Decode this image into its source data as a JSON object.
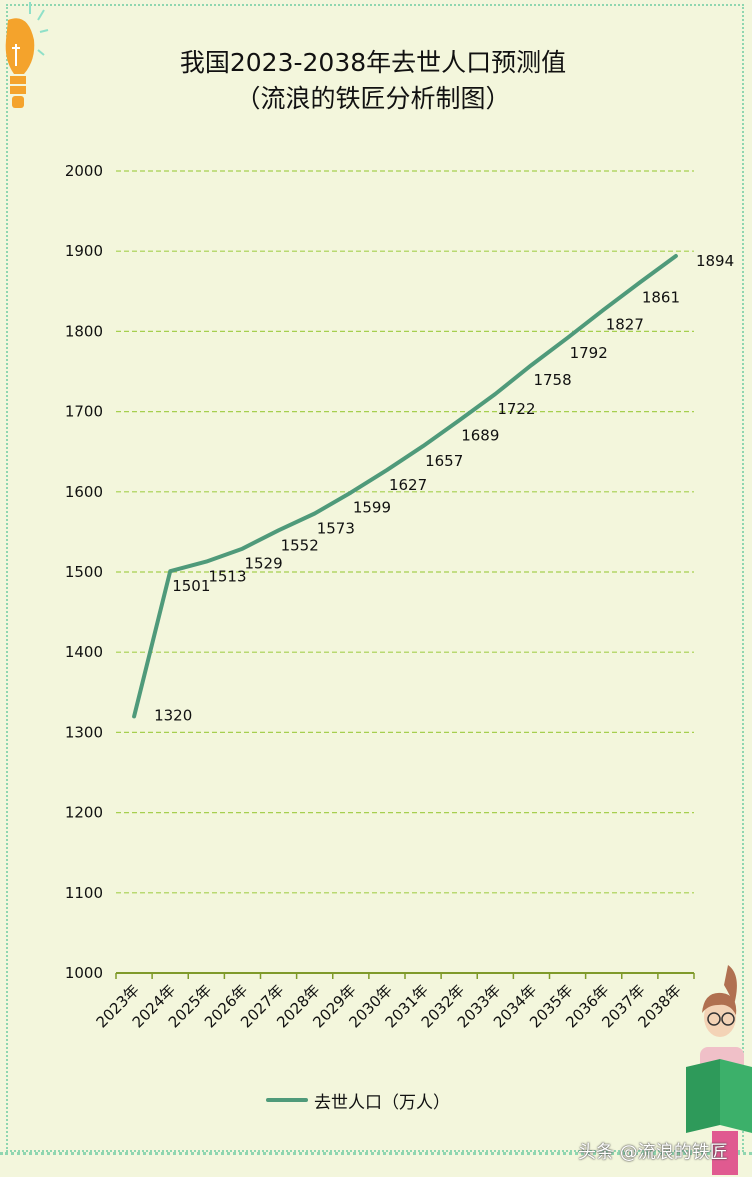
{
  "title_line1": "我国2023-2038年去世人口预测值",
  "title_line2": "（流浪的铁匠分析制图）",
  "legend_label": "去世人口（万人）",
  "watermark": "头条 @流浪的铁匠",
  "chart_data": {
    "type": "line",
    "title": "我国2023-2038年去世人口预测值（流浪的铁匠分析制图）",
    "categories": [
      "2023年",
      "2024年",
      "2025年",
      "2026年",
      "2027年",
      "2028年",
      "2029年",
      "2030年",
      "2031年",
      "2032年",
      "2033年",
      "2034年",
      "2035年",
      "2036年",
      "2037年",
      "2038年"
    ],
    "series": [
      {
        "name": "去世人口（万人）",
        "values": [
          1320,
          1501,
          1513,
          1529,
          1552,
          1573,
          1599,
          1627,
          1657,
          1689,
          1722,
          1758,
          1792,
          1827,
          1861,
          1894
        ],
        "color": "#4f9a7a"
      }
    ],
    "ylim": [
      1000,
      2000
    ],
    "yticks": [
      1000,
      1100,
      1200,
      1300,
      1400,
      1500,
      1600,
      1700,
      1800,
      1900,
      2000
    ],
    "grid": true,
    "grid_color": "#a6cf4f",
    "legend_position": "bottom"
  }
}
